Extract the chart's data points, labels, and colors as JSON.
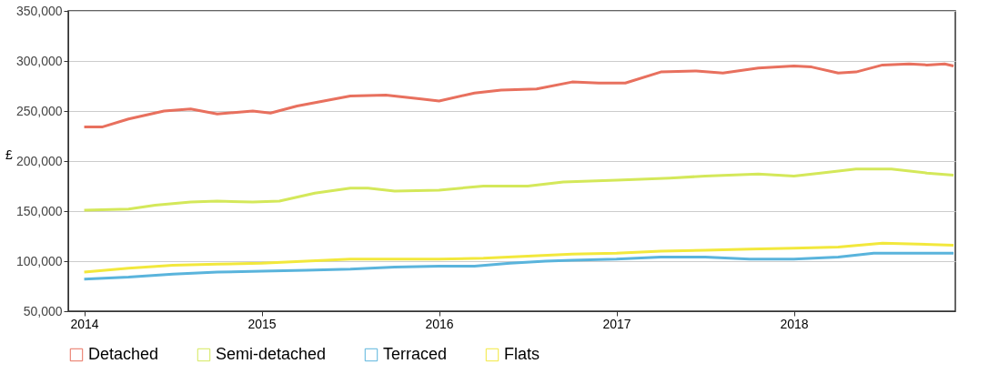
{
  "chart_data": {
    "type": "line",
    "ylabel": "£",
    "xlim": [
      2013.91,
      2018.91
    ],
    "xticks": [
      2014,
      2015,
      2016,
      2017,
      2018
    ],
    "ylim": [
      50000,
      350000
    ],
    "yticks": [
      {
        "value": 50000,
        "label": "50,000"
      },
      {
        "value": 100000,
        "label": "100,000"
      },
      {
        "value": 150000,
        "label": "150,000"
      },
      {
        "value": 200000,
        "label": "200,000"
      },
      {
        "value": 250000,
        "label": "250,000"
      },
      {
        "value": 300000,
        "label": "300,000"
      },
      {
        "value": 350000,
        "label": "350,000"
      }
    ],
    "grid": "y",
    "legend": "bottom",
    "marker": "none",
    "line_style": "solid",
    "series": [
      {
        "name": "Detached",
        "color": "#e8705e",
        "x": [
          2014.0,
          2014.1,
          2014.25,
          2014.45,
          2014.6,
          2014.75,
          2014.95,
          2015.05,
          2015.2,
          2015.35,
          2015.5,
          2015.7,
          2015.9,
          2016.0,
          2016.2,
          2016.35,
          2016.55,
          2016.75,
          2016.9,
          2017.05,
          2017.25,
          2017.45,
          2017.6,
          2017.8,
          2018.0,
          2018.1,
          2018.25,
          2018.35,
          2018.5,
          2018.65,
          2018.75,
          2018.85,
          2018.9
        ],
        "values": [
          234000,
          234000,
          242000,
          250000,
          252000,
          247000,
          250000,
          248000,
          255000,
          260000,
          265000,
          266000,
          262000,
          260000,
          268000,
          271000,
          272000,
          279000,
          278000,
          278000,
          289000,
          290000,
          288000,
          293000,
          295000,
          294000,
          288000,
          289000,
          296000,
          297000,
          296000,
          297000,
          295000
        ]
      },
      {
        "name": "Semi-detached",
        "color": "#d4e85a",
        "x": [
          2014.0,
          2014.25,
          2014.4,
          2014.6,
          2014.75,
          2014.95,
          2015.1,
          2015.3,
          2015.5,
          2015.6,
          2015.75,
          2016.0,
          2016.25,
          2016.5,
          2016.7,
          2017.0,
          2017.3,
          2017.5,
          2017.8,
          2018.0,
          2018.15,
          2018.35,
          2018.55,
          2018.75,
          2018.9
        ],
        "values": [
          151000,
          152000,
          156000,
          159000,
          160000,
          159000,
          160000,
          168000,
          173000,
          173000,
          170000,
          171000,
          175000,
          175000,
          179000,
          181000,
          183000,
          185000,
          187000,
          185000,
          188000,
          192000,
          192000,
          188000,
          186000
        ]
      },
      {
        "name": "Terraced",
        "color": "#5ab4dc",
        "x": [
          2014.0,
          2014.25,
          2014.5,
          2014.75,
          2015.0,
          2015.25,
          2015.5,
          2015.75,
          2016.0,
          2016.2,
          2016.4,
          2016.6,
          2016.75,
          2017.0,
          2017.25,
          2017.5,
          2017.75,
          2018.0,
          2018.25,
          2018.45,
          2018.6,
          2018.9
        ],
        "values": [
          82000,
          84000,
          87000,
          89000,
          90000,
          91000,
          92000,
          94000,
          95000,
          95000,
          98000,
          100000,
          101000,
          102000,
          104000,
          104000,
          102000,
          102000,
          104000,
          108000,
          108000,
          108000
        ]
      },
      {
        "name": "Flats",
        "color": "#f2e83c",
        "x": [
          2014.0,
          2014.25,
          2014.5,
          2014.75,
          2015.0,
          2015.25,
          2015.5,
          2015.75,
          2016.0,
          2016.25,
          2016.5,
          2016.75,
          2017.0,
          2017.25,
          2017.5,
          2017.75,
          2018.0,
          2018.25,
          2018.5,
          2018.7,
          2018.9
        ],
        "values": [
          89000,
          93000,
          96000,
          97000,
          98000,
          100000,
          102000,
          102000,
          102000,
          103000,
          105000,
          107000,
          108000,
          110000,
          111000,
          112000,
          113000,
          114000,
          118000,
          117000,
          116000
        ]
      }
    ]
  }
}
